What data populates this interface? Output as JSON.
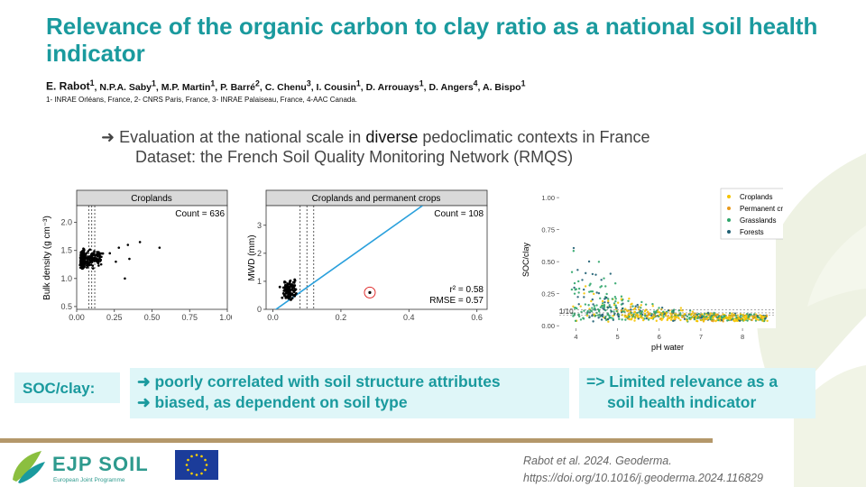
{
  "title": "Relevance of the organic carbon to clay ratio as a national soil health indicator",
  "authors": {
    "lead": "E. Rabot",
    "lead_sup": "1",
    "others": [
      {
        "name": "N.P.A. Saby",
        "sup": "1"
      },
      {
        "name": "M.P. Martin",
        "sup": "1"
      },
      {
        "name": "P. Barré",
        "sup": "2"
      },
      {
        "name": "C. Chenu",
        "sup": "3"
      },
      {
        "name": "I. Cousin",
        "sup": "1"
      },
      {
        "name": "D. Arrouays",
        "sup": "1"
      },
      {
        "name": "D. Angers",
        "sup": "4"
      },
      {
        "name": "A. Bispo",
        "sup": "1"
      }
    ]
  },
  "affiliations": "1- INRAE Orléans, France, 2- CNRS Paris, France, 3- INRAE Palaiseau, France, 4-AAC Canada.",
  "bullet": {
    "arrow": "➜",
    "pre": "Evaluation at the national scale in",
    "em": "diverse",
    "post": "pedoclimatic contexts in France",
    "sub": "Dataset: the French Soil Quality Monitoring Network (RMQS)"
  },
  "chart_data": [
    {
      "type": "scatter",
      "title": "Croplands",
      "ylabel": "Bulk density (g cm⁻³)",
      "xlim": [
        0,
        1.0
      ],
      "ylim": [
        0.45,
        2.3
      ],
      "xticks": [
        "0.00",
        "0.25",
        "0.50",
        "0.75",
        "1.00"
      ],
      "xtick_values": [
        0,
        0.25,
        0.5,
        0.75,
        1.0
      ],
      "yticks": [
        "0.5",
        "1.0",
        "1.5",
        "2.0"
      ],
      "ytick_values": [
        0.5,
        1.0,
        1.5,
        2.0
      ],
      "annotation": "Count = 636",
      "vlines": [
        0.08,
        0.1,
        0.12
      ]
    },
    {
      "type": "scatter",
      "title": "Croplands and permanent crops",
      "ylabel": "MWD (mm)",
      "xlim": [
        -0.02,
        0.63
      ],
      "ylim": [
        0,
        3.7
      ],
      "xticks": [
        "0.0",
        "0.2",
        "0.4",
        "0.6"
      ],
      "xtick_values": [
        0,
        0.2,
        0.4,
        0.6
      ],
      "yticks": [
        "0",
        "1",
        "2",
        "3"
      ],
      "ytick_values": [
        0,
        1,
        2,
        3
      ],
      "annotation": "Count = 108",
      "stats": {
        "r2_label": "r² = 0.58",
        "rmse_label": "RMSE = 0.57"
      },
      "vlines": [
        0.08,
        0.1,
        0.12
      ],
      "fit_line": {
        "x": [
          -0.02,
          0.44
        ],
        "y": [
          -0.25,
          3.7
        ]
      },
      "outlier": {
        "x": 0.285,
        "y": 0.6
      }
    },
    {
      "type": "scatter",
      "ylabel": "SOC/clay",
      "xlabel": "pH water",
      "xlim": [
        3.6,
        8.8
      ],
      "ylim": [
        -0.02,
        1.05
      ],
      "xticks": [
        "4",
        "5",
        "6",
        "7",
        "8"
      ],
      "xtick_values": [
        4,
        5,
        6,
        7,
        8
      ],
      "yticks": [
        "0.00",
        "0.25",
        "0.50",
        "0.75",
        "1.00"
      ],
      "ytick_values": [
        0,
        0.25,
        0.5,
        0.75,
        1.0
      ],
      "hline_label": "1/10",
      "hlines": [
        0.083,
        0.1,
        0.125
      ],
      "legend_position": "top-right",
      "series": [
        {
          "name": "Croplands",
          "color": "#f5c400"
        },
        {
          "name": "Permanent crops",
          "color": "#e89a1c"
        },
        {
          "name": "Grasslands",
          "color": "#2fa66a"
        },
        {
          "name": "Forests",
          "color": "#1f5f73"
        }
      ]
    }
  ],
  "summary": {
    "label": "SOC/clay:",
    "lines": [
      "➜ poorly correlated with soil structure attributes",
      "➜ biased, as dependent on soil type"
    ],
    "conclusion": [
      "=> Limited relevance as a",
      "soil health indicator"
    ]
  },
  "citation": {
    "line1": "Rabot et al. 2024. Geoderma.",
    "line2": "https://doi.org/10.1016/j.geoderma.2024.116829"
  },
  "logo": {
    "text": "EJP SOIL",
    "tagline": "European Joint Programme"
  },
  "colors": {
    "accent": "#1a9a9e",
    "box_bg": "#dff6f8",
    "gold": "#b4986a",
    "fit": "#2aa0dc"
  }
}
